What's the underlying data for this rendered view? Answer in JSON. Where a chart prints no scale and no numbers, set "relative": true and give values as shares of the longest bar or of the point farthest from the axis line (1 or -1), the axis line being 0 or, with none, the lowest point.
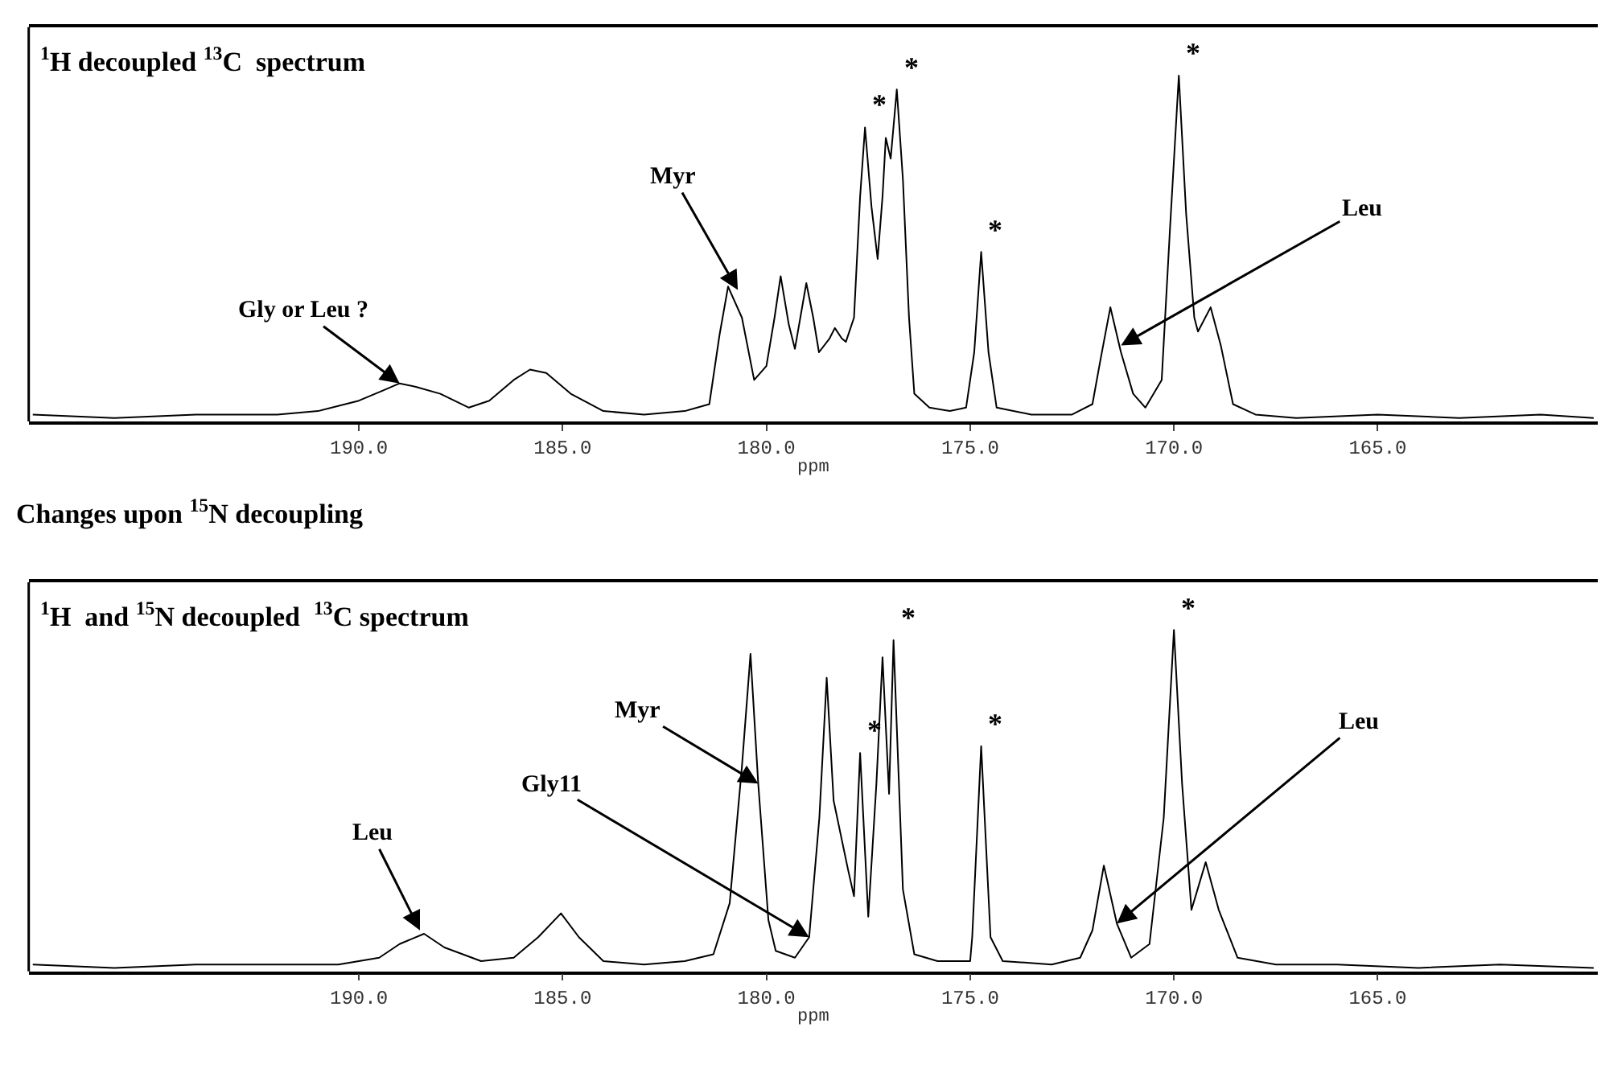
{
  "chart_data": [
    {
      "type": "line",
      "title": "$^{1}$H decoupled $^{13}$C  spectrum",
      "xlabel": "ppm",
      "relative": true,
      "marker": "none",
      "line_style": "solid",
      "xlim": [
        198.1,
        159.6
      ],
      "xticks": [
        {
          "value": 190,
          "label": "190.0"
        },
        {
          "value": 185,
          "label": "185.0"
        },
        {
          "value": 180,
          "label": "180.0"
        },
        {
          "value": 175,
          "label": "175.0"
        },
        {
          "value": 170,
          "label": "170.0"
        },
        {
          "value": 165,
          "label": "165.0"
        }
      ],
      "series": [
        {
          "color": "#000000",
          "x": [
            198.0,
            196.0,
            194.0,
            192.0,
            191.0,
            190.0,
            189.4,
            189.0,
            188.6,
            188.0,
            187.3,
            186.8,
            186.2,
            185.8,
            185.4,
            184.8,
            184.0,
            183.0,
            182.0,
            181.4,
            181.15,
            180.94,
            180.6,
            180.3,
            180.0,
            179.8,
            179.65,
            179.45,
            179.3,
            179.02,
            178.85,
            178.71,
            178.45,
            178.32,
            178.15,
            178.05,
            177.85,
            177.7,
            177.58,
            177.42,
            177.27,
            177.15,
            177.07,
            176.95,
            176.8,
            176.65,
            176.5,
            176.37,
            176.0,
            175.5,
            175.1,
            174.9,
            174.73,
            174.55,
            174.35,
            173.5,
            172.5,
            172.0,
            171.8,
            171.56,
            171.3,
            171.0,
            170.7,
            170.3,
            170.1,
            169.88,
            169.7,
            169.5,
            169.41,
            169.1,
            168.85,
            168.55,
            168.0,
            167.0,
            165.0,
            163.0,
            161.0,
            159.7
          ],
          "values": [
            0.02,
            0.01,
            0.02,
            0.02,
            0.03,
            0.06,
            0.09,
            0.11,
            0.1,
            0.08,
            0.04,
            0.06,
            0.12,
            0.15,
            0.14,
            0.08,
            0.03,
            0.02,
            0.03,
            0.05,
            0.25,
            0.39,
            0.3,
            0.12,
            0.16,
            0.3,
            0.42,
            0.28,
            0.21,
            0.4,
            0.3,
            0.2,
            0.24,
            0.27,
            0.24,
            0.23,
            0.3,
            0.65,
            0.85,
            0.62,
            0.47,
            0.65,
            0.82,
            0.76,
            0.96,
            0.7,
            0.3,
            0.08,
            0.04,
            0.03,
            0.04,
            0.2,
            0.49,
            0.2,
            0.04,
            0.02,
            0.02,
            0.05,
            0.18,
            0.33,
            0.2,
            0.08,
            0.04,
            0.12,
            0.55,
            1.0,
            0.6,
            0.3,
            0.26,
            0.33,
            0.22,
            0.05,
            0.02,
            0.01,
            0.02,
            0.01,
            0.02,
            0.01
          ]
        }
      ],
      "annotations": [
        {
          "text": "Gly or Leu ?",
          "x": 189.0,
          "y": 0.11
        },
        {
          "text": "Myr",
          "x": 180.7,
          "y": 0.38
        },
        {
          "text": "Leu",
          "x": 171.3,
          "y": 0.22
        },
        {
          "text": "*",
          "x": 177.58,
          "y": 0.85
        },
        {
          "text": "*",
          "x": 176.8,
          "y": 0.96
        },
        {
          "text": "*",
          "x": 174.73,
          "y": 0.49
        },
        {
          "text": "*",
          "x": 169.88,
          "y": 1.0
        },
        "Changes upon $^{15}$N decoupling"
      ]
    },
    {
      "type": "line",
      "title": "$^{1}$H  and $^{15}$N decoupled  $^{13}$C spectrum",
      "xlabel": "ppm",
      "relative": true,
      "marker": "none",
      "line_style": "solid",
      "xlim": [
        198.1,
        159.6
      ],
      "xticks": [
        {
          "value": 190,
          "label": "190.0"
        },
        {
          "value": 185,
          "label": "185.0"
        },
        {
          "value": 180,
          "label": "180.0"
        },
        {
          "value": 175,
          "label": "175.0"
        },
        {
          "value": 170,
          "label": "170.0"
        },
        {
          "value": 165,
          "label": "165.0"
        }
      ],
      "series": [
        {
          "color": "#000000",
          "x": [
            198.0,
            196.0,
            194.0,
            192.0,
            190.5,
            189.5,
            189.0,
            188.4,
            187.9,
            187.0,
            186.2,
            185.6,
            185.04,
            184.6,
            184.0,
            183.0,
            182.0,
            181.3,
            180.9,
            180.6,
            180.39,
            180.2,
            179.95,
            179.77,
            179.3,
            178.95,
            178.7,
            178.52,
            178.35,
            178.0,
            177.85,
            177.7,
            177.5,
            177.3,
            177.15,
            176.99,
            176.88,
            176.65,
            176.37,
            175.8,
            175.0,
            174.95,
            174.73,
            174.5,
            174.2,
            173.0,
            172.3,
            172.0,
            171.72,
            171.4,
            171.05,
            170.6,
            170.25,
            170.0,
            169.8,
            169.57,
            169.22,
            168.9,
            168.44,
            167.5,
            166.0,
            164.0,
            162.0,
            159.7
          ],
          "values": [
            0.02,
            0.01,
            0.02,
            0.02,
            0.02,
            0.04,
            0.08,
            0.11,
            0.07,
            0.03,
            0.04,
            0.1,
            0.17,
            0.1,
            0.03,
            0.02,
            0.03,
            0.05,
            0.2,
            0.6,
            0.93,
            0.55,
            0.15,
            0.06,
            0.04,
            0.1,
            0.45,
            0.86,
            0.5,
            0.3,
            0.22,
            0.64,
            0.16,
            0.55,
            0.92,
            0.52,
            0.97,
            0.24,
            0.05,
            0.03,
            0.03,
            0.1,
            0.66,
            0.1,
            0.03,
            0.02,
            0.04,
            0.12,
            0.31,
            0.14,
            0.04,
            0.08,
            0.45,
            1.0,
            0.55,
            0.18,
            0.32,
            0.18,
            0.04,
            0.02,
            0.02,
            0.01,
            0.02,
            0.01
          ]
        }
      ],
      "annotations": [
        {
          "text": "Leu",
          "x": 188.5,
          "y": 0.12
        },
        {
          "text": "Myr",
          "x": 180.2,
          "y": 0.55
        },
        {
          "text": "Gly11",
          "x": 178.95,
          "y": 0.1
        },
        {
          "text": "Leu",
          "x": 171.4,
          "y": 0.14
        },
        {
          "text": "*",
          "x": 177.7,
          "y": 0.64
        },
        {
          "text": "*",
          "x": 176.88,
          "y": 0.97
        },
        {
          "text": "*",
          "x": 174.73,
          "y": 0.66
        },
        {
          "text": "*",
          "x": 170.0,
          "y": 1.0
        }
      ]
    }
  ]
}
